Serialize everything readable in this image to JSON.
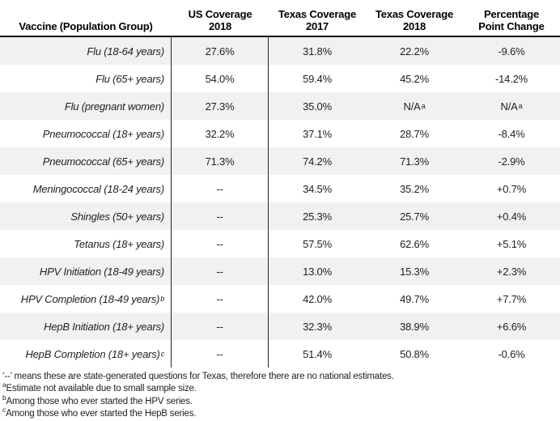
{
  "table": {
    "headers": {
      "vaccine": "Vaccine (Population Group)",
      "us_coverage": {
        "line1": "US Coverage",
        "line2": "2018"
      },
      "tx_coverage_2017": {
        "line1": "Texas Coverage",
        "line2": "2017"
      },
      "tx_coverage_2018": {
        "line1": "Texas Coverage",
        "line2": "2018"
      },
      "change": {
        "line1": "Percentage",
        "line2": "Point Change"
      }
    },
    "rows": [
      {
        "label": "Flu (18-64 years)",
        "us_2018": "27.6%",
        "tx_2017": "31.8%",
        "tx_2018": "22.2%",
        "change": "-9.6%"
      },
      {
        "label": "Flu (65+ years)",
        "us_2018": "54.0%",
        "tx_2017": "59.4%",
        "tx_2018": "45.2%",
        "change": "-14.2%"
      },
      {
        "label": "Flu (pregnant women)",
        "us_2018": "27.3%",
        "tx_2017": "35.0%",
        "tx_2018": "N/A",
        "tx_2018_sup": "a",
        "change": "N/A",
        "change_sup": "a"
      },
      {
        "label": "Pneumococcal (18+ years)",
        "us_2018": "32.2%",
        "tx_2017": "37.1%",
        "tx_2018": "28.7%",
        "change": "-8.4%"
      },
      {
        "label": "Pneumococcal (65+ years)",
        "us_2018": "71.3%",
        "tx_2017": "74.2%",
        "tx_2018": "71.3%",
        "change": "-2.9%"
      },
      {
        "label": "Meningococcal (18-24 years)",
        "us_2018": "--",
        "tx_2017": "34.5%",
        "tx_2018": "35.2%",
        "change": "+0.7%"
      },
      {
        "label": "Shingles (50+ years)",
        "us_2018": "--",
        "tx_2017": "25.3%",
        "tx_2018": "25.7%",
        "change": "+0.4%"
      },
      {
        "label": "Tetanus (18+ years)",
        "us_2018": "--",
        "tx_2017": "57.5%",
        "tx_2018": "62.6%",
        "change": "+5.1%"
      },
      {
        "label": "HPV Initiation (18-49 years)",
        "us_2018": "--",
        "tx_2017": "13.0%",
        "tx_2018": "15.3%",
        "change": "+2.3%"
      },
      {
        "label": "HPV Completion (18-49 years)",
        "label_sup": "b",
        "us_2018": "--",
        "tx_2017": "42.0%",
        "tx_2018": "49.7%",
        "change": "+7.7%"
      },
      {
        "label": "HepB Initiation (18+ years)",
        "us_2018": "--",
        "tx_2017": "32.3%",
        "tx_2018": "38.9%",
        "change": "+6.6%"
      },
      {
        "label": "HepB Completion (18+ years)",
        "label_sup": "c",
        "us_2018": "--",
        "tx_2017": "51.4%",
        "tx_2018": "50.8%",
        "change": "-0.6%"
      }
    ]
  },
  "footnotes": [
    {
      "sup": "",
      "text": "‘--’ means these are state-generated questions for Texas, therefore there are no national estimates."
    },
    {
      "sup": "a",
      "text": "Estimate not available due to small sample size."
    },
    {
      "sup": "b",
      "text": "Among those who ever started the HPV series."
    },
    {
      "sup": "c",
      "text": "Among those who ever started the HepB series."
    }
  ],
  "colors": {
    "row_shade": "#f1f1f1",
    "border": "#000000",
    "text": "#1f1f1f"
  }
}
